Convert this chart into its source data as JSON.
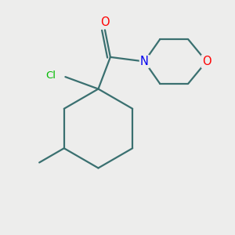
{
  "background_color": "#ededec",
  "bond_color": "#3a7070",
  "atom_colors": {
    "O_carbonyl": "#ff0000",
    "Cl": "#00bb00",
    "N": "#0000ee",
    "O_morpholine": "#ff0000"
  },
  "figsize": [
    3.0,
    3.0
  ],
  "dpi": 100,
  "bond_lw": 1.6,
  "font_size_atoms": 9.5
}
